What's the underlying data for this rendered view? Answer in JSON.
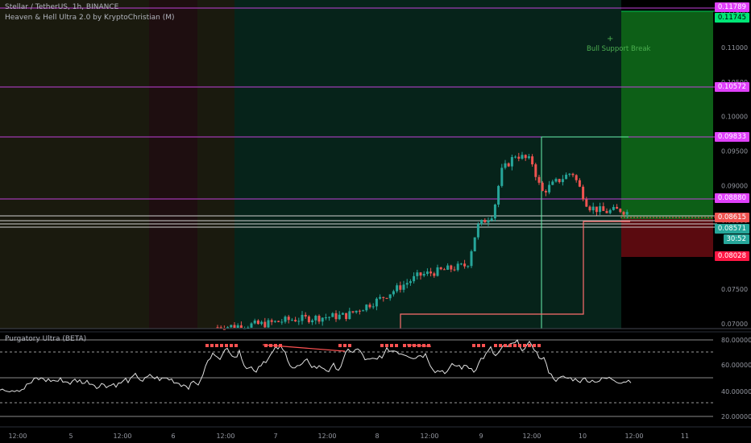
{
  "chart": {
    "symbol_line": "Stellar / TetherUS, 1h, BINANCE",
    "indicator_line": "Heaven & Hell Ultra 2.0 by KryptoChristian (M)",
    "annotation_plus": "+",
    "annotation": "Bull Support Break",
    "countdown": "30:52"
  },
  "price_tags": [
    {
      "text": "0.11789",
      "color": "#e040fb"
    },
    {
      "text": "0.11745",
      "color": "#00e676"
    },
    {
      "text": "0.10572",
      "color": "#e040fb"
    },
    {
      "text": "0.09833",
      "color": "#e040fb"
    },
    {
      "text": "0.08880",
      "color": "#e040fb"
    },
    {
      "text": "0.08615",
      "color": "#ef5350"
    },
    {
      "text": "0.08571",
      "color": "#26a69a"
    },
    {
      "text": "0.08028",
      "color": "#ff1744"
    }
  ],
  "price_axis_ticks": [
    "0.11500",
    "0.11000",
    "0.10500",
    "0.10000",
    "0.09500",
    "0.09000",
    "0.08500",
    "0.08000",
    "0.07500",
    "0.07000"
  ],
  "oscillator": {
    "title": "Purgatory Ultra (BETA)",
    "ticks": [
      "80.00000",
      "60.00000",
      "40.00000",
      "20.00000"
    ]
  },
  "time_axis": [
    "12:00",
    "5",
    "12:00",
    "6",
    "12:00",
    "7",
    "12:00",
    "8",
    "12:00",
    "9",
    "12:00",
    "10",
    "12:00",
    "11"
  ],
  "colors": {
    "up": "#26a69a",
    "down": "#ef5350",
    "magenta": "#e040fb",
    "green": "#00e676",
    "red": "#ff1744"
  }
}
